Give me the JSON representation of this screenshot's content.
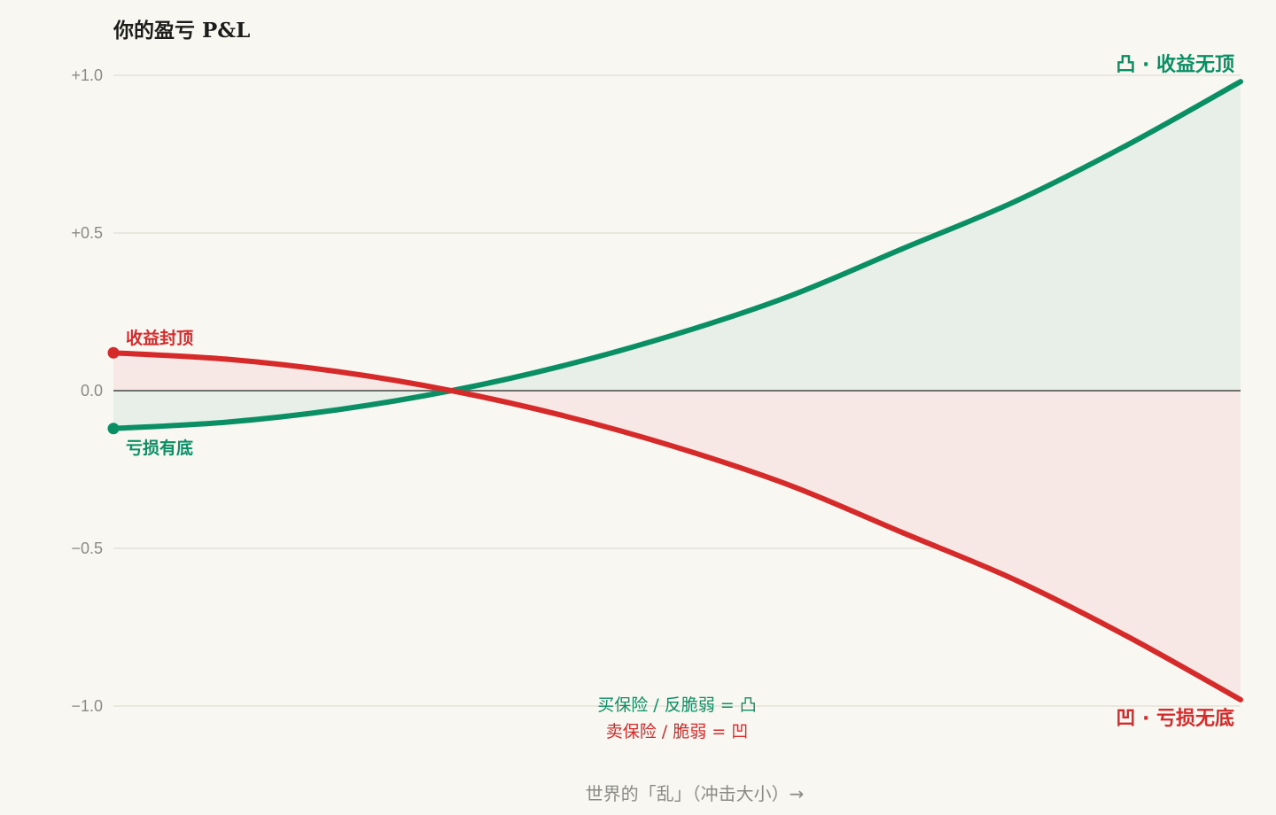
{
  "chart_data": {
    "type": "line",
    "title": "你的盈亏 P&L",
    "xlabel": "世界的「乱」（冲击大小）→",
    "ylabel": "",
    "ylim": [
      -1.0,
      1.0
    ],
    "xlim": [
      0,
      1
    ],
    "grid": true,
    "yticks": [
      {
        "value": 1.0,
        "label": "+1.0"
      },
      {
        "value": 0.5,
        "label": "+0.5"
      },
      {
        "value": 0.0,
        "label": "0.0"
      },
      {
        "value": -0.5,
        "label": "−0.5"
      },
      {
        "value": -1.0,
        "label": "−1.0"
      }
    ],
    "series": [
      {
        "key": "convex",
        "color": "#0a8f65",
        "fill": "#e7efe8",
        "x": [
          0,
          0.1,
          0.2,
          0.3,
          0.4,
          0.5,
          0.6,
          0.7,
          0.8,
          0.9,
          1.0
        ],
        "y": [
          -0.12,
          -0.1,
          -0.06,
          0.0,
          0.08,
          0.18,
          0.3,
          0.45,
          0.6,
          0.78,
          0.98
        ]
      },
      {
        "key": "concave",
        "color": "#d62a2a",
        "fill": "#f7e8e5",
        "x": [
          0,
          0.1,
          0.2,
          0.3,
          0.4,
          0.5,
          0.6,
          0.7,
          0.8,
          0.9,
          1.0
        ],
        "y": [
          0.12,
          0.1,
          0.06,
          0.0,
          -0.08,
          -0.18,
          -0.3,
          -0.45,
          -0.6,
          -0.78,
          -0.98
        ]
      }
    ],
    "annotations": {
      "capped_gain": "收益封顶",
      "floored_loss": "亏损有底",
      "convex_end": "凸 · 收益无顶",
      "concave_end": "凹 · 亏损无底"
    },
    "legend": [
      {
        "text": "买保险 / 反脆弱 = 凸",
        "color": "#0a8f65"
      },
      {
        "text": "卖保险 / 脆弱 = 凹",
        "color": "#d62a2a"
      }
    ],
    "legend_position": "bottom-center",
    "colors": {
      "background": "#f9f7f2",
      "grid": "#e6e4d8",
      "zero_line": "#6f6f6b",
      "convex": "#0a8f65",
      "concave": "#d62a2a"
    }
  }
}
